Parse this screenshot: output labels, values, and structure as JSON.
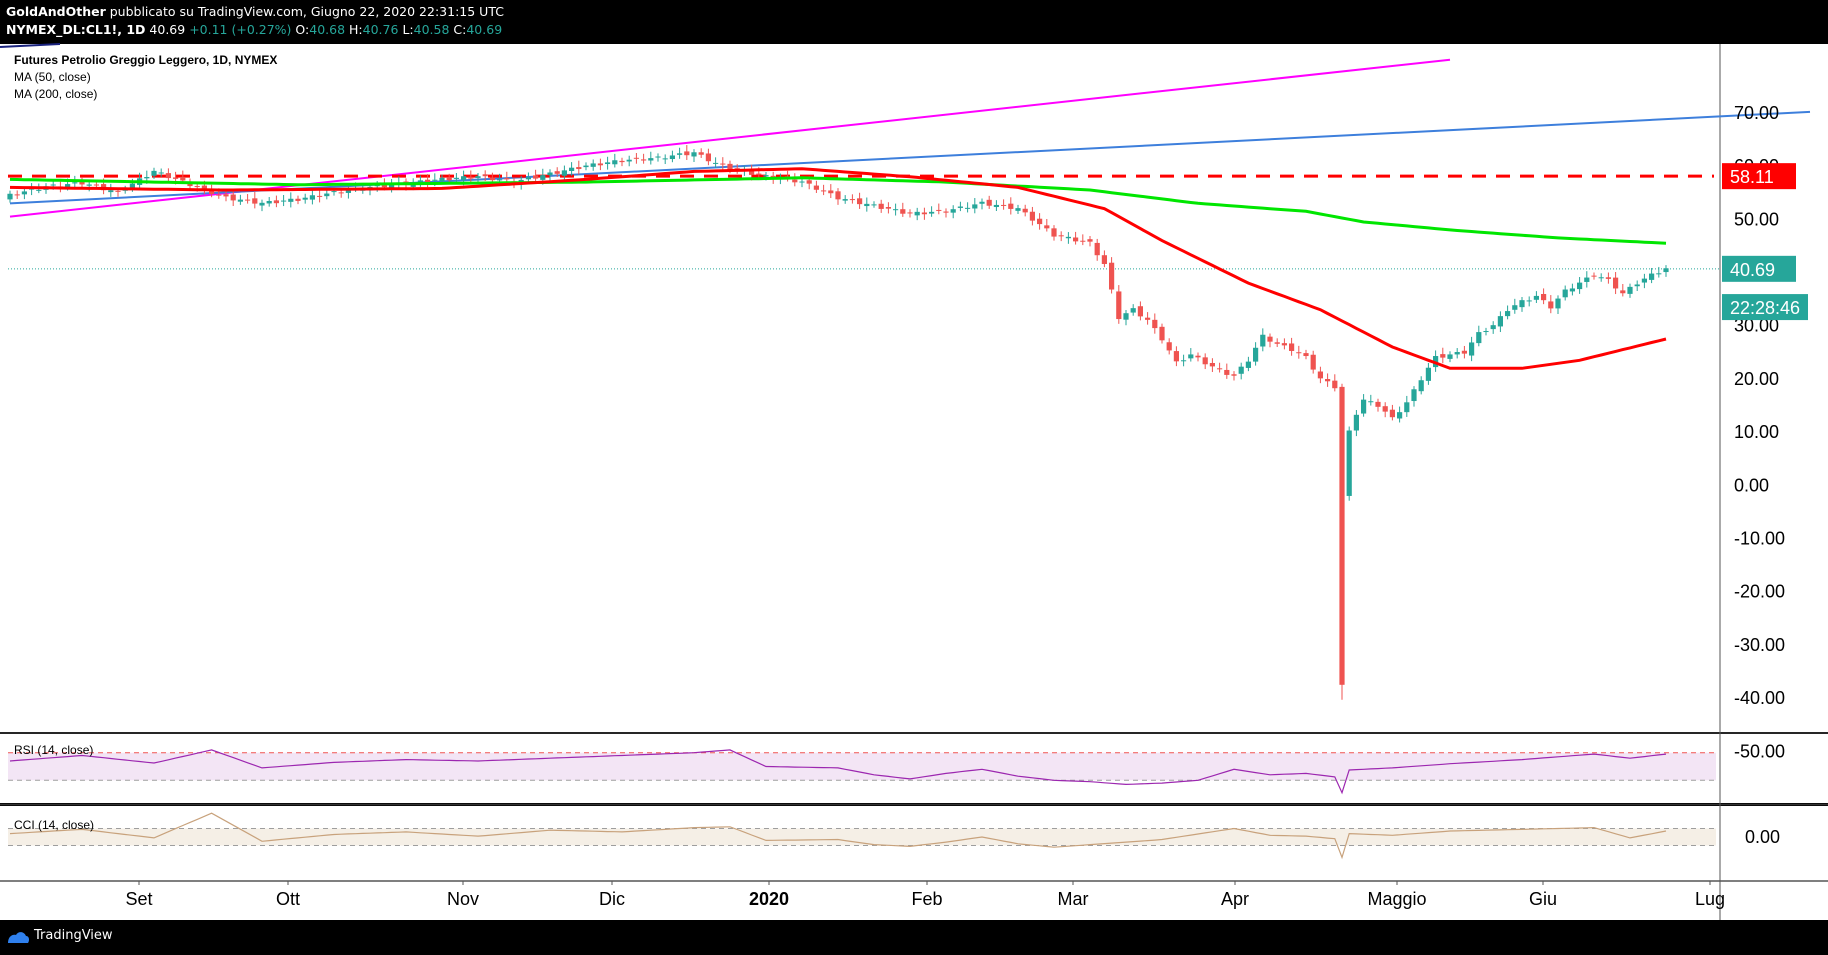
{
  "header": {
    "author": "GoldAndOther",
    "published": "pubblicato su TradingView.com, Giugno 22, 2020 22:31:15 UTC",
    "symbol": "NYMEX_DL:CL1!, 1D",
    "last": "40.69",
    "change": "+0.11 (+0.27%)",
    "open_label": "O:",
    "open": "40.68",
    "high_label": "H:",
    "high": "40.76",
    "low_label": "L:",
    "low": "40.58",
    "close_label": "C:",
    "close": "40.69"
  },
  "legend": {
    "title": "Futures Petrolio Greggio Leggero, 1D, NYMEX",
    "ma50": "MA (50, close)",
    "ma200": "MA (200, close)"
  },
  "footer": {
    "brand": "TradingView"
  },
  "colors": {
    "up": "#26a69a",
    "down": "#ef5350",
    "ma50": "#ff0000",
    "ma200": "#00e600",
    "trend_magenta": "#ff00ff",
    "trend_blue": "#3d7fdc",
    "rsi": "#9c27b0",
    "cci": "#c8a27c"
  },
  "chart_data": [
    {
      "type": "candlestick",
      "title": "Futures Petrolio Greggio Leggero, 1D, NYMEX",
      "x_labels": [
        "Set",
        "Ott",
        "Nov",
        "Dic",
        "2020",
        "Feb",
        "Mar",
        "Apr",
        "Maggio",
        "Giu",
        "Lug"
      ],
      "y_ticks": [
        "70.00",
        "60.00",
        "50.00",
        "30.00",
        "20.00",
        "10.00",
        "0.00",
        "-10.00",
        "-20.00",
        "-30.00",
        "-40.00",
        "-50.00"
      ],
      "ylim": [
        -50,
        80
      ],
      "price_marks": [
        {
          "label": "58.11",
          "value": 58.11,
          "color": "#ff0000"
        },
        {
          "label": "40.69",
          "value": 40.69,
          "color": "#26a69a"
        },
        {
          "label": "22:28:46",
          "value": 33.5,
          "color": "#26a69a"
        }
      ],
      "horizontal_line": {
        "value": 58.11,
        "style": "dashed",
        "color": "#ff0000"
      },
      "trendlines": [
        {
          "color": "#ff00ff",
          "from_index": 0,
          "from_value": 50.5,
          "to_index": 200,
          "to_value": 80
        },
        {
          "color": "#3d7fdc",
          "from_index": 0,
          "from_value": 53.0,
          "to_index": 250,
          "to_value": 70.2
        }
      ],
      "close_keypoints": [
        [
          0,
          54.5
        ],
        [
          5,
          56.1
        ],
        [
          10,
          56.8
        ],
        [
          15,
          55.0
        ],
        [
          20,
          59.0
        ],
        [
          25,
          56.5
        ],
        [
          30,
          54.0
        ],
        [
          35,
          53.0
        ],
        [
          40,
          53.7
        ],
        [
          45,
          55.0
        ],
        [
          50,
          56.0
        ],
        [
          55,
          56.7
        ],
        [
          60,
          57.5
        ],
        [
          65,
          58.0
        ],
        [
          70,
          57.0
        ],
        [
          75,
          58.5
        ],
        [
          80,
          60.0
        ],
        [
          85,
          61.0
        ],
        [
          90,
          61.5
        ],
        [
          95,
          62.5
        ],
        [
          98,
          60.5
        ],
        [
          100,
          59.5
        ],
        [
          105,
          58.0
        ],
        [
          110,
          57.0
        ],
        [
          115,
          54.0
        ],
        [
          120,
          52.5
        ],
        [
          125,
          51.0
        ],
        [
          130,
          51.5
        ],
        [
          135,
          53.0
        ],
        [
          140,
          52.0
        ],
        [
          145,
          47.0
        ],
        [
          150,
          45.5
        ],
        [
          152,
          41.5
        ],
        [
          154,
          31.5
        ],
        [
          156,
          33.0
        ],
        [
          158,
          31.0
        ],
        [
          160,
          27.5
        ],
        [
          162,
          23.0
        ],
        [
          164,
          24.5
        ],
        [
          166,
          23.0
        ],
        [
          168,
          21.5
        ],
        [
          170,
          20.5
        ],
        [
          172,
          23.5
        ],
        [
          174,
          28.0
        ],
        [
          176,
          26.5
        ],
        [
          178,
          25.5
        ],
        [
          180,
          24.0
        ],
        [
          182,
          20.0
        ],
        [
          184,
          18.5
        ],
        [
          185,
          -37.6
        ],
        [
          186,
          10.0
        ],
        [
          187,
          13.5
        ],
        [
          188,
          16.0
        ],
        [
          190,
          15.0
        ],
        [
          192,
          12.5
        ],
        [
          194,
          15.5
        ],
        [
          196,
          20.0
        ],
        [
          198,
          24.0
        ],
        [
          200,
          24.5
        ],
        [
          202,
          25.0
        ],
        [
          204,
          28.5
        ],
        [
          206,
          30.0
        ],
        [
          208,
          33.0
        ],
        [
          210,
          34.5
        ],
        [
          212,
          35.5
        ],
        [
          214,
          33.5
        ],
        [
          216,
          36.5
        ],
        [
          218,
          38.0
        ],
        [
          220,
          39.5
        ],
        [
          222,
          38.5
        ],
        [
          224,
          36.0
        ],
        [
          226,
          38.0
        ],
        [
          228,
          39.5
        ],
        [
          230,
          40.69
        ]
      ],
      "ma50_keypoints": [
        [
          0,
          56.0
        ],
        [
          30,
          55.5
        ],
        [
          60,
          55.8
        ],
        [
          80,
          57.5
        ],
        [
          95,
          59.0
        ],
        [
          110,
          59.5
        ],
        [
          125,
          58.0
        ],
        [
          140,
          56.0
        ],
        [
          152,
          52.0
        ],
        [
          160,
          46.0
        ],
        [
          172,
          38.0
        ],
        [
          182,
          33.0
        ],
        [
          192,
          26.0
        ],
        [
          200,
          22.0
        ],
        [
          210,
          22.0
        ],
        [
          218,
          23.5
        ],
        [
          224,
          25.5
        ],
        [
          230,
          27.5
        ]
      ],
      "ma200_keypoints": [
        [
          0,
          57.5
        ],
        [
          40,
          56.5
        ],
        [
          80,
          57.0
        ],
        [
          110,
          57.8
        ],
        [
          130,
          57.0
        ],
        [
          150,
          55.5
        ],
        [
          165,
          53.0
        ],
        [
          180,
          51.5
        ],
        [
          188,
          49.5
        ],
        [
          200,
          48.0
        ],
        [
          215,
          46.5
        ],
        [
          230,
          45.5
        ]
      ]
    },
    {
      "type": "line",
      "title": "RSI (14, close)",
      "ylim": [
        0,
        100
      ],
      "guides": [
        70,
        30
      ],
      "keypoints": [
        [
          0,
          58
        ],
        [
          10,
          66
        ],
        [
          20,
          55
        ],
        [
          28,
          74
        ],
        [
          35,
          48
        ],
        [
          45,
          56
        ],
        [
          55,
          60
        ],
        [
          65,
          58
        ],
        [
          75,
          62
        ],
        [
          85,
          66
        ],
        [
          95,
          70
        ],
        [
          100,
          74
        ],
        [
          105,
          50
        ],
        [
          115,
          48
        ],
        [
          120,
          38
        ],
        [
          125,
          32
        ],
        [
          130,
          40
        ],
        [
          135,
          46
        ],
        [
          140,
          36
        ],
        [
          145,
          30
        ],
        [
          150,
          28
        ],
        [
          155,
          24
        ],
        [
          160,
          26
        ],
        [
          165,
          30
        ],
        [
          170,
          46
        ],
        [
          175,
          38
        ],
        [
          180,
          40
        ],
        [
          184,
          35
        ],
        [
          185,
          12
        ],
        [
          186,
          45
        ],
        [
          192,
          48
        ],
        [
          200,
          54
        ],
        [
          210,
          60
        ],
        [
          220,
          68
        ],
        [
          225,
          62
        ],
        [
          230,
          68
        ]
      ]
    },
    {
      "type": "line",
      "title": "CCI (14, close)",
      "y_ticks": [
        "0.00"
      ],
      "ylim": [
        -300,
        300
      ],
      "guides": [
        100,
        -100
      ],
      "keypoints": [
        [
          0,
          40
        ],
        [
          10,
          90
        ],
        [
          20,
          -10
        ],
        [
          28,
          280
        ],
        [
          35,
          -50
        ],
        [
          45,
          30
        ],
        [
          55,
          60
        ],
        [
          65,
          10
        ],
        [
          75,
          80
        ],
        [
          85,
          60
        ],
        [
          95,
          110
        ],
        [
          100,
          120
        ],
        [
          105,
          -40
        ],
        [
          115,
          -30
        ],
        [
          120,
          -90
        ],
        [
          125,
          -110
        ],
        [
          130,
          -60
        ],
        [
          135,
          0
        ],
        [
          140,
          -80
        ],
        [
          145,
          -120
        ],
        [
          150,
          -90
        ],
        [
          155,
          -60
        ],
        [
          160,
          -30
        ],
        [
          170,
          100
        ],
        [
          175,
          20
        ],
        [
          180,
          10
        ],
        [
          184,
          -20
        ],
        [
          185,
          -240
        ],
        [
          186,
          40
        ],
        [
          192,
          20
        ],
        [
          200,
          70
        ],
        [
          210,
          90
        ],
        [
          220,
          110
        ],
        [
          225,
          -10
        ],
        [
          230,
          70
        ]
      ]
    }
  ]
}
